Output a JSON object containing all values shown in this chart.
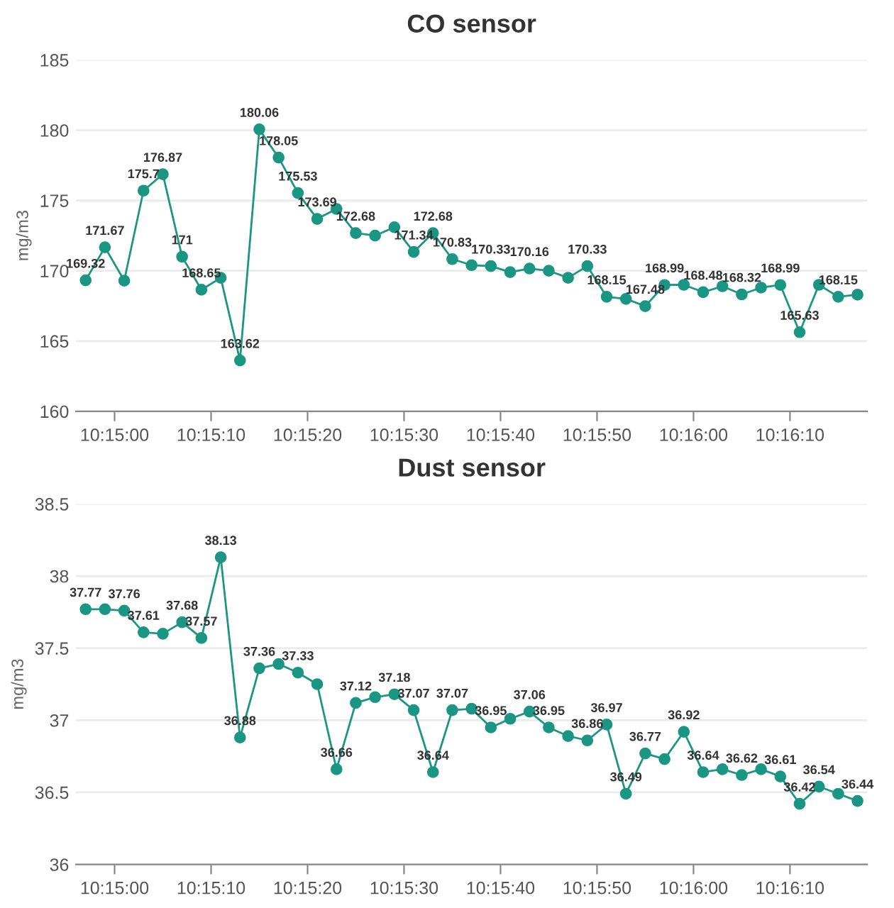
{
  "chart_data": [
    {
      "type": "line",
      "title": "CO sensor",
      "ylabel": "mg/m3",
      "marker": "circle",
      "grid": "y",
      "x": [
        10.249167,
        10.249722,
        10.250278,
        10.250833,
        10.251389,
        10.251944,
        10.2525,
        10.253056,
        10.253611,
        10.254167,
        10.254722,
        10.255278,
        10.255833,
        10.256389,
        10.256944,
        10.2575,
        10.258056,
        10.258611,
        10.259167,
        10.259722,
        10.260278,
        10.260833,
        10.261389,
        10.261944,
        10.2625,
        10.263056,
        10.263611,
        10.264167,
        10.264722,
        10.265278,
        10.265833,
        10.266389,
        10.266944,
        10.2675,
        10.268056,
        10.268611,
        10.269167,
        10.269722,
        10.270278,
        10.270833,
        10.271389
      ],
      "xlim": [
        10.248889,
        10.271667
      ],
      "xticks": [
        {
          "value": 10.25,
          "label": "10:15:00"
        },
        {
          "value": 10.252778,
          "label": "10:15:10"
        },
        {
          "value": 10.255556,
          "label": "10:15:20"
        },
        {
          "value": 10.258333,
          "label": "10:15:30"
        },
        {
          "value": 10.261111,
          "label": "10:15:40"
        },
        {
          "value": 10.263889,
          "label": "10:15:50"
        },
        {
          "value": 10.266667,
          "label": "10:16:00"
        },
        {
          "value": 10.269444,
          "label": "10:16:10"
        }
      ],
      "ylim": [
        160,
        185
      ],
      "yticks": [
        160,
        165,
        170,
        175,
        180,
        185
      ],
      "series": [
        {
          "color": "#1a9683",
          "values": [
            169.32,
            171.67,
            169.3,
            175.7,
            176.87,
            171,
            168.65,
            169.5,
            163.62,
            180.06,
            178.05,
            175.53,
            173.69,
            174.4,
            172.68,
            172.5,
            173.1,
            171.34,
            172.68,
            170.83,
            170.4,
            170.33,
            169.9,
            170.16,
            170.0,
            169.5,
            170.33,
            168.15,
            168.0,
            167.48,
            168.99,
            169.0,
            168.48,
            168.9,
            168.32,
            168.8,
            168.99,
            165.63,
            169.0,
            168.15,
            168.3
          ],
          "value_labels": [
            "169.32",
            "171.67",
            null,
            "175.7",
            "176.87",
            "171",
            "168.65",
            null,
            "163.62",
            "180.06",
            "178.05",
            "175.53",
            "173.69",
            null,
            "172.68",
            null,
            null,
            "171.34",
            "172.68",
            "170.83",
            null,
            "170.33",
            null,
            "170.16",
            null,
            null,
            "170.33",
            "168.15",
            null,
            "167.48",
            "168.99",
            null,
            "168.48",
            null,
            "168.32",
            null,
            "168.99",
            "165.63",
            null,
            "168.15",
            null
          ]
        }
      ]
    },
    {
      "type": "line",
      "title": "Dust sensor",
      "ylabel": "mg/m3",
      "marker": "circle",
      "grid": "y",
      "x": [
        10.249167,
        10.249722,
        10.250278,
        10.250833,
        10.251389,
        10.251944,
        10.2525,
        10.253056,
        10.253611,
        10.254167,
        10.254722,
        10.255278,
        10.255833,
        10.256389,
        10.256944,
        10.2575,
        10.258056,
        10.258611,
        10.259167,
        10.259722,
        10.260278,
        10.260833,
        10.261389,
        10.261944,
        10.2625,
        10.263056,
        10.263611,
        10.264167,
        10.264722,
        10.265278,
        10.265833,
        10.266389,
        10.266944,
        10.2675,
        10.268056,
        10.268611,
        10.269167,
        10.269722,
        10.270278,
        10.270833,
        10.271389
      ],
      "xlim": [
        10.248889,
        10.271667
      ],
      "xticks": [
        {
          "value": 10.25,
          "label": "10:15:00"
        },
        {
          "value": 10.252778,
          "label": "10:15:10"
        },
        {
          "value": 10.255556,
          "label": "10:15:20"
        },
        {
          "value": 10.258333,
          "label": "10:15:30"
        },
        {
          "value": 10.261111,
          "label": "10:15:40"
        },
        {
          "value": 10.263889,
          "label": "10:15:50"
        },
        {
          "value": 10.266667,
          "label": "10:16:00"
        },
        {
          "value": 10.269444,
          "label": "10:16:10"
        }
      ],
      "ylim": [
        36,
        38.5
      ],
      "yticks": [
        36,
        36.5,
        37,
        37.5,
        38,
        38.5
      ],
      "series": [
        {
          "color": "#1a9683",
          "values": [
            37.77,
            37.77,
            37.76,
            37.61,
            37.6,
            37.68,
            37.57,
            38.13,
            36.88,
            37.36,
            37.39,
            37.33,
            37.25,
            36.66,
            37.12,
            37.16,
            37.18,
            37.07,
            36.64,
            37.07,
            37.08,
            36.95,
            37.01,
            37.06,
            36.95,
            36.89,
            36.86,
            36.97,
            36.49,
            36.77,
            36.73,
            36.92,
            36.64,
            36.66,
            36.62,
            36.66,
            36.61,
            36.42,
            36.54,
            36.49,
            36.44
          ],
          "value_labels": [
            "37.77",
            null,
            "37.76",
            "37.61",
            null,
            "37.68",
            "37.57",
            "38.13",
            "36.88",
            "37.36",
            null,
            "37.33",
            null,
            "36.66",
            "37.12",
            null,
            "37.18",
            "37.07",
            "36.64",
            "37.07",
            null,
            "36.95",
            null,
            "37.06",
            "36.95",
            null,
            "36.86",
            "36.97",
            "36.49",
            "36.77",
            null,
            "36.92",
            "36.64",
            null,
            "36.62",
            null,
            "36.61",
            "36.42",
            "36.54",
            null,
            "36.44"
          ]
        }
      ]
    }
  ]
}
